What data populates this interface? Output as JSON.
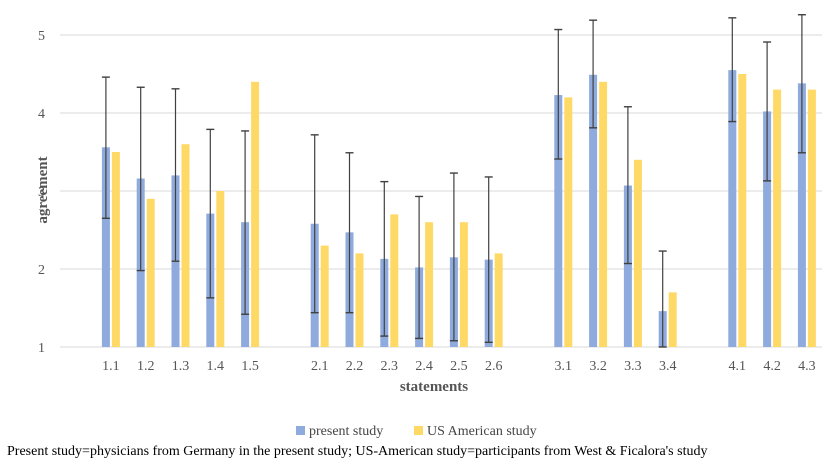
{
  "chart_data": {
    "type": "bar",
    "title": "",
    "xlabel": "statements",
    "ylabel": "agreement",
    "ylim": [
      1,
      5
    ],
    "yticks": [
      1,
      2,
      3,
      4,
      5
    ],
    "grid": true,
    "legend_position": "bottom",
    "groups": [
      [
        "1.1",
        "1.2",
        "1.3",
        "1.4",
        "1.5"
      ],
      [
        "2.1",
        "2.2",
        "2.3",
        "2.4",
        "2.5",
        "2.6"
      ],
      [
        "3.1",
        "3.2",
        "3.3",
        "3.4"
      ],
      [
        "4.1",
        "4.2",
        "4.3"
      ]
    ],
    "categories": [
      "1.1",
      "1.2",
      "1.3",
      "1.4",
      "1.5",
      "2.1",
      "2.2",
      "2.3",
      "2.4",
      "2.5",
      "2.6",
      "3.1",
      "3.2",
      "3.3",
      "3.4",
      "4.1",
      "4.2",
      "4.3"
    ],
    "series": [
      {
        "name": "present study",
        "color": "#8faadc",
        "values": [
          3.56,
          3.16,
          3.2,
          2.71,
          2.6,
          2.58,
          2.47,
          2.13,
          2.02,
          2.15,
          2.12,
          4.23,
          4.49,
          3.07,
          1.46,
          4.55,
          4.02,
          4.38
        ],
        "error_low": [
          2.65,
          1.98,
          2.1,
          1.63,
          1.42,
          1.44,
          1.44,
          1.14,
          1.11,
          1.08,
          1.06,
          3.41,
          3.81,
          2.07,
          1.0,
          3.89,
          3.13,
          3.49
        ],
        "error_high": [
          4.46,
          4.33,
          4.31,
          3.79,
          3.77,
          3.72,
          3.49,
          3.12,
          2.93,
          3.23,
          3.18,
          5.07,
          5.19,
          4.08,
          2.23,
          5.22,
          4.91,
          5.26
        ]
      },
      {
        "name": "US American study",
        "color": "#ffd966",
        "values": [
          3.5,
          2.9,
          3.6,
          3.0,
          4.4,
          2.3,
          2.2,
          2.7,
          2.6,
          2.6,
          2.2,
          4.2,
          4.4,
          3.4,
          1.7,
          4.5,
          4.3,
          4.3
        ]
      }
    ],
    "error_bar_color": "#404040",
    "grid_color": "#d9d9d9"
  },
  "caption": "Present study=physicians from Germany in the present study; US-American study=participants from West & Ficalora's study"
}
